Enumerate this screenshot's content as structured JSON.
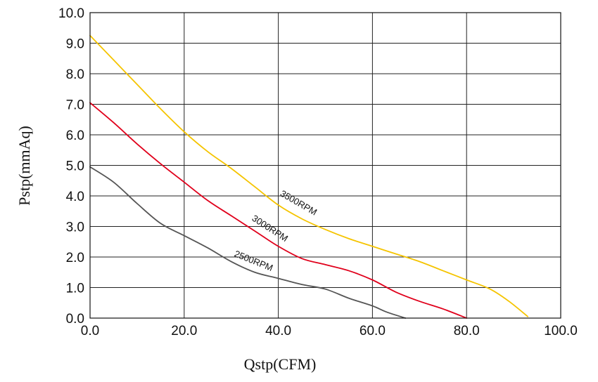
{
  "chart_data": {
    "type": "line",
    "title": "",
    "xlabel": "Qstp(CFM)",
    "ylabel": "Pstp(mmAq)",
    "xlim": [
      0,
      100
    ],
    "ylim": [
      0,
      10
    ],
    "grid": true,
    "x_ticks": [
      {
        "value": 0,
        "label": "0.0"
      },
      {
        "value": 20,
        "label": "20.0"
      },
      {
        "value": 40,
        "label": "40.0"
      },
      {
        "value": 60,
        "label": "60.0"
      },
      {
        "value": 80,
        "label": "80.0"
      },
      {
        "value": 100,
        "label": "100.0"
      }
    ],
    "y_ticks": [
      {
        "value": 0,
        "label": "0.0"
      },
      {
        "value": 1,
        "label": "1.0"
      },
      {
        "value": 2,
        "label": "2.0"
      },
      {
        "value": 3,
        "label": "3.0"
      },
      {
        "value": 4,
        "label": "4.0"
      },
      {
        "value": 5,
        "label": "5.0"
      },
      {
        "value": 6,
        "label": "6.0"
      },
      {
        "value": 7,
        "label": "7.0"
      },
      {
        "value": 8,
        "label": "8.0"
      },
      {
        "value": 9,
        "label": "9.0"
      },
      {
        "value": 10,
        "label": "10.0"
      }
    ],
    "series": [
      {
        "name": "3500RPM",
        "color": "#F5C400",
        "points": [
          [
            0,
            9.25
          ],
          [
            5,
            8.45
          ],
          [
            10,
            7.65
          ],
          [
            15,
            6.85
          ],
          [
            20,
            6.1
          ],
          [
            25,
            5.45
          ],
          [
            30,
            4.9
          ],
          [
            35,
            4.3
          ],
          [
            40,
            3.7
          ],
          [
            45,
            3.25
          ],
          [
            50,
            2.9
          ],
          [
            55,
            2.6
          ],
          [
            60,
            2.35
          ],
          [
            65,
            2.1
          ],
          [
            70,
            1.85
          ],
          [
            75,
            1.55
          ],
          [
            80,
            1.25
          ],
          [
            85,
            0.95
          ],
          [
            89,
            0.55
          ],
          [
            93,
            0.05
          ]
        ]
      },
      {
        "name": "3000RPM",
        "color": "#E0001B",
        "points": [
          [
            0,
            7.05
          ],
          [
            5,
            6.4
          ],
          [
            10,
            5.7
          ],
          [
            15,
            5.05
          ],
          [
            20,
            4.45
          ],
          [
            25,
            3.85
          ],
          [
            30,
            3.35
          ],
          [
            35,
            2.85
          ],
          [
            40,
            2.35
          ],
          [
            45,
            1.95
          ],
          [
            50,
            1.75
          ],
          [
            55,
            1.55
          ],
          [
            60,
            1.25
          ],
          [
            65,
            0.85
          ],
          [
            70,
            0.55
          ],
          [
            75,
            0.3
          ],
          [
            80,
            0.0
          ]
        ]
      },
      {
        "name": "2500RPM",
        "color": "#555555",
        "points": [
          [
            0,
            4.95
          ],
          [
            5,
            4.45
          ],
          [
            10,
            3.75
          ],
          [
            15,
            3.1
          ],
          [
            20,
            2.7
          ],
          [
            25,
            2.3
          ],
          [
            30,
            1.85
          ],
          [
            35,
            1.5
          ],
          [
            40,
            1.3
          ],
          [
            45,
            1.1
          ],
          [
            50,
            0.95
          ],
          [
            55,
            0.65
          ],
          [
            60,
            0.4
          ],
          [
            63,
            0.2
          ],
          [
            67,
            0.0
          ]
        ]
      }
    ]
  }
}
